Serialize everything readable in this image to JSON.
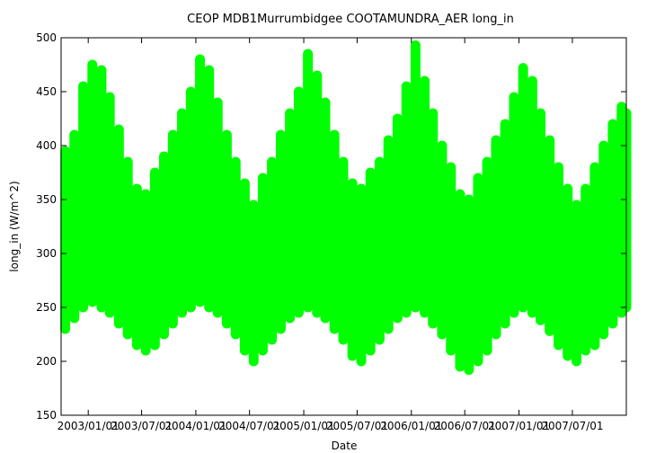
{
  "chart_data": {
    "type": "scatter",
    "title": "CEOP MDB1Murrumbidgee COOTAMUNDRA_AER  long_in",
    "xlabel": "Date",
    "ylabel": "long_in (W/m^2)",
    "ylim": [
      150,
      500
    ],
    "xlim": [
      "2002-10-01",
      "2007-12-31"
    ],
    "y_ticks": [
      150,
      200,
      250,
      300,
      350,
      400,
      450,
      500
    ],
    "x_ticks": [
      {
        "date": "2003-01-01",
        "label": "2003/01/01"
      },
      {
        "date": "2003-07-01",
        "label": "2003/07/01"
      },
      {
        "date": "2004-01-01",
        "label": "2004/01/01"
      },
      {
        "date": "2004-07-01",
        "label": "2004/07/01"
      },
      {
        "date": "2005-01-01",
        "label": "2005/01/01"
      },
      {
        "date": "2005-07-01",
        "label": "2005/07/01"
      },
      {
        "date": "2006-01-01",
        "label": "2006/01/01"
      },
      {
        "date": "2006-07-01",
        "label": "2006/07/01"
      },
      {
        "date": "2007-01-01",
        "label": "2007/01/01"
      },
      {
        "date": "2007-07-01",
        "label": "2007/07/01"
      }
    ],
    "grid": false,
    "marker_color": "#00ff00",
    "series": [
      {
        "points": [
          [
            "2002-10-15",
            310
          ],
          [
            "2002-11-01",
            330
          ],
          [
            "2002-11-15",
            345
          ],
          [
            "2002-12-01",
            350
          ],
          [
            "2002-12-15",
            355
          ],
          [
            "2003-01-01",
            360
          ],
          [
            "2003-01-15",
            362
          ],
          [
            "2003-02-01",
            360
          ],
          [
            "2003-02-15",
            355
          ],
          [
            "2003-03-01",
            345
          ],
          [
            "2003-03-15",
            335
          ],
          [
            "2003-04-01",
            320
          ],
          [
            "2003-04-15",
            308
          ],
          [
            "2003-05-01",
            298
          ],
          [
            "2003-05-15",
            290
          ],
          [
            "2003-06-01",
            285
          ],
          [
            "2003-06-15",
            282
          ],
          [
            "2003-07-01",
            280
          ],
          [
            "2003-07-15",
            280
          ],
          [
            "2003-08-01",
            283
          ],
          [
            "2003-08-15",
            288
          ],
          [
            "2003-09-01",
            295
          ],
          [
            "2003-09-15",
            305
          ],
          [
            "2003-10-01",
            315
          ],
          [
            "2003-10-15",
            325
          ],
          [
            "2003-11-01",
            335
          ],
          [
            "2003-11-15",
            343
          ],
          [
            "2003-12-01",
            350
          ],
          [
            "2003-12-15",
            356
          ],
          [
            "2004-01-01",
            362
          ],
          [
            "2004-01-15",
            366
          ],
          [
            "2004-02-01",
            364
          ],
          [
            "2004-02-15",
            358
          ],
          [
            "2004-03-01",
            348
          ],
          [
            "2004-03-15",
            336
          ],
          [
            "2004-04-01",
            322
          ],
          [
            "2004-04-15",
            310
          ],
          [
            "2004-05-01",
            299
          ],
          [
            "2004-05-15",
            291
          ],
          [
            "2004-06-01",
            285
          ],
          [
            "2004-06-15",
            281
          ],
          [
            "2004-07-01",
            279
          ],
          [
            "2004-07-15",
            279
          ],
          [
            "2004-08-01",
            282
          ],
          [
            "2004-08-15",
            288
          ],
          [
            "2004-09-01",
            296
          ],
          [
            "2004-09-15",
            305
          ],
          [
            "2004-10-01",
            315
          ],
          [
            "2004-10-15",
            325
          ],
          [
            "2004-11-01",
            336
          ],
          [
            "2004-11-15",
            344
          ],
          [
            "2004-12-01",
            352
          ],
          [
            "2004-12-15",
            358
          ],
          [
            "2005-01-01",
            363
          ],
          [
            "2005-01-15",
            365
          ],
          [
            "2005-02-01",
            362
          ],
          [
            "2005-02-15",
            355
          ],
          [
            "2005-03-01",
            345
          ],
          [
            "2005-03-15",
            333
          ],
          [
            "2005-04-01",
            320
          ],
          [
            "2005-04-15",
            308
          ],
          [
            "2005-05-01",
            297
          ],
          [
            "2005-05-15",
            289
          ],
          [
            "2005-06-01",
            283
          ],
          [
            "2005-06-15",
            279
          ],
          [
            "2005-07-01",
            277
          ],
          [
            "2005-07-15",
            277
          ],
          [
            "2005-08-01",
            280
          ],
          [
            "2005-08-15",
            286
          ],
          [
            "2005-09-01",
            294
          ],
          [
            "2005-09-15",
            303
          ],
          [
            "2005-10-01",
            313
          ],
          [
            "2005-10-15",
            324
          ],
          [
            "2005-11-01",
            335
          ],
          [
            "2005-11-15",
            345
          ],
          [
            "2005-12-01",
            353
          ],
          [
            "2005-12-15",
            360
          ],
          [
            "2006-01-01",
            365
          ],
          [
            "2006-01-15",
            367
          ],
          [
            "2006-02-01",
            364
          ],
          [
            "2006-02-15",
            356
          ],
          [
            "2006-03-01",
            345
          ],
          [
            "2006-03-15",
            332
          ],
          [
            "2006-04-01",
            318
          ],
          [
            "2006-04-15",
            305
          ],
          [
            "2006-05-01",
            294
          ],
          [
            "2006-05-15",
            286
          ],
          [
            "2006-06-01",
            280
          ],
          [
            "2006-06-15",
            276
          ],
          [
            "2006-07-01",
            275
          ],
          [
            "2006-07-15",
            276
          ],
          [
            "2006-08-01",
            280
          ],
          [
            "2006-08-15",
            287
          ],
          [
            "2006-09-01",
            296
          ],
          [
            "2006-09-15",
            306
          ],
          [
            "2006-10-01",
            316
          ],
          [
            "2006-10-15",
            326
          ],
          [
            "2006-11-01",
            336
          ],
          [
            "2006-11-15",
            344
          ],
          [
            "2006-12-01",
            351
          ],
          [
            "2006-12-15",
            357
          ],
          [
            "2007-01-01",
            361
          ],
          [
            "2007-01-15",
            363
          ],
          [
            "2007-02-01",
            360
          ],
          [
            "2007-02-15",
            354
          ],
          [
            "2007-03-01",
            345
          ],
          [
            "2007-03-15",
            334
          ],
          [
            "2007-04-01",
            321
          ],
          [
            "2007-04-15",
            309
          ],
          [
            "2007-05-01",
            298
          ],
          [
            "2007-05-15",
            290
          ],
          [
            "2007-06-01",
            283
          ],
          [
            "2007-06-15",
            279
          ],
          [
            "2007-07-01",
            277
          ],
          [
            "2007-07-15",
            278
          ],
          [
            "2007-08-01",
            281
          ],
          [
            "2007-08-15",
            287
          ],
          [
            "2007-09-01",
            295
          ],
          [
            "2007-09-15",
            305
          ],
          [
            "2007-10-01",
            315
          ],
          [
            "2007-10-15",
            326
          ],
          [
            "2007-11-01",
            337
          ],
          [
            "2007-11-15",
            346
          ],
          [
            "2007-12-01",
            353
          ],
          [
            "2007-12-15",
            358
          ],
          [
            "2007-12-31",
            360
          ]
        ],
        "envelope": [
          [
            "2002-10-15",
            230,
            395
          ],
          [
            "2002-11-15",
            240,
            410
          ],
          [
            "2002-12-15",
            250,
            455
          ],
          [
            "2003-01-15",
            255,
            475
          ],
          [
            "2003-02-15",
            250,
            470
          ],
          [
            "2003-03-15",
            245,
            445
          ],
          [
            "2003-04-15",
            235,
            415
          ],
          [
            "2003-05-15",
            225,
            385
          ],
          [
            "2003-06-15",
            215,
            360
          ],
          [
            "2003-07-15",
            210,
            355
          ],
          [
            "2003-08-15",
            215,
            375
          ],
          [
            "2003-09-15",
            225,
            390
          ],
          [
            "2003-10-15",
            235,
            410
          ],
          [
            "2003-11-15",
            245,
            430
          ],
          [
            "2003-12-15",
            250,
            450
          ],
          [
            "2004-01-15",
            255,
            480
          ],
          [
            "2004-02-15",
            250,
            470
          ],
          [
            "2004-03-15",
            245,
            440
          ],
          [
            "2004-04-15",
            235,
            410
          ],
          [
            "2004-05-15",
            225,
            385
          ],
          [
            "2004-06-15",
            210,
            365
          ],
          [
            "2004-07-15",
            200,
            345
          ],
          [
            "2004-08-15",
            210,
            370
          ],
          [
            "2004-09-15",
            220,
            385
          ],
          [
            "2004-10-15",
            230,
            410
          ],
          [
            "2004-11-15",
            240,
            430
          ],
          [
            "2004-12-15",
            245,
            450
          ],
          [
            "2005-01-15",
            250,
            485
          ],
          [
            "2005-02-15",
            245,
            465
          ],
          [
            "2005-03-15",
            240,
            440
          ],
          [
            "2005-04-15",
            230,
            410
          ],
          [
            "2005-05-15",
            220,
            385
          ],
          [
            "2005-06-15",
            205,
            365
          ],
          [
            "2005-07-15",
            200,
            360
          ],
          [
            "2005-08-15",
            210,
            375
          ],
          [
            "2005-09-15",
            220,
            385
          ],
          [
            "2005-10-15",
            230,
            405
          ],
          [
            "2005-11-15",
            240,
            425
          ],
          [
            "2005-12-15",
            245,
            455
          ],
          [
            "2006-01-15",
            250,
            493
          ],
          [
            "2006-02-15",
            245,
            460
          ],
          [
            "2006-03-15",
            235,
            430
          ],
          [
            "2006-04-15",
            225,
            400
          ],
          [
            "2006-05-15",
            210,
            380
          ],
          [
            "2006-06-15",
            195,
            355
          ],
          [
            "2006-07-15",
            192,
            350
          ],
          [
            "2006-08-15",
            200,
            370
          ],
          [
            "2006-09-15",
            210,
            385
          ],
          [
            "2006-10-15",
            225,
            405
          ],
          [
            "2006-11-15",
            235,
            420
          ],
          [
            "2006-12-15",
            245,
            445
          ],
          [
            "2007-01-15",
            250,
            472
          ],
          [
            "2007-02-15",
            245,
            460
          ],
          [
            "2007-03-15",
            238,
            430
          ],
          [
            "2007-04-15",
            228,
            405
          ],
          [
            "2007-05-15",
            215,
            380
          ],
          [
            "2007-06-15",
            205,
            360
          ],
          [
            "2007-07-15",
            200,
            345
          ],
          [
            "2007-08-15",
            210,
            360
          ],
          [
            "2007-09-15",
            215,
            380
          ],
          [
            "2007-10-15",
            225,
            400
          ],
          [
            "2007-11-15",
            235,
            420
          ],
          [
            "2007-12-15",
            245,
            436
          ],
          [
            "2007-12-31",
            250,
            430
          ]
        ]
      }
    ]
  }
}
